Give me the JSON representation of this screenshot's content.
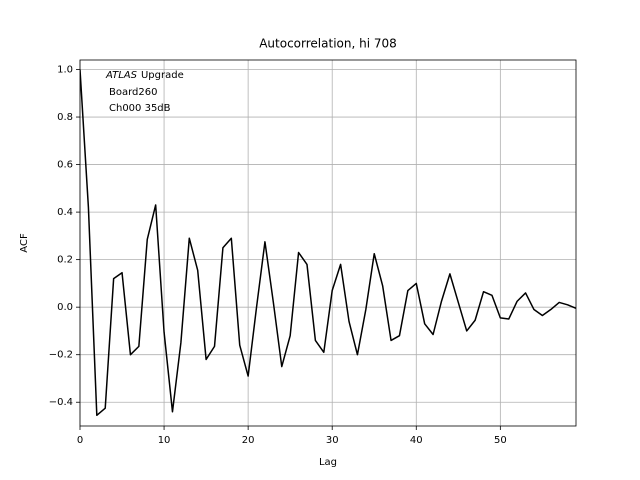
{
  "chart_data": {
    "type": "line",
    "title": "Autocorrelation, hi 708",
    "x_label": "Lag",
    "y_label": "ACF",
    "annotation": {
      "emphasis": "ATLAS",
      "lines": [
        "Upgrade",
        "Board260",
        "Ch000 35dB"
      ]
    },
    "x": [
      0,
      1,
      2,
      3,
      4,
      5,
      6,
      7,
      8,
      9,
      10,
      11,
      12,
      13,
      14,
      15,
      16,
      17,
      18,
      19,
      20,
      21,
      22,
      23,
      24,
      25,
      26,
      27,
      28,
      29,
      30,
      31,
      32,
      33,
      34,
      35,
      36,
      37,
      38,
      39,
      40,
      41,
      42,
      43,
      44,
      45,
      46,
      47,
      48,
      49,
      50,
      51,
      52,
      53,
      54,
      55,
      56,
      57,
      58,
      59
    ],
    "series": [
      {
        "color": "#000000",
        "values": [
          1.0,
          0.42,
          -0.455,
          -0.425,
          0.12,
          0.145,
          -0.2,
          -0.165,
          0.285,
          0.43,
          -0.105,
          -0.44,
          -0.15,
          0.29,
          0.155,
          -0.22,
          -0.165,
          0.25,
          0.29,
          -0.16,
          -0.29,
          0.0,
          0.275,
          0.02,
          -0.25,
          -0.12,
          0.23,
          0.18,
          -0.14,
          -0.19,
          0.07,
          0.18,
          -0.06,
          -0.2,
          -0.01,
          0.225,
          0.09,
          -0.14,
          -0.12,
          0.07,
          0.1,
          -0.07,
          -0.115,
          0.025,
          0.14,
          0.02,
          -0.1,
          -0.055,
          0.065,
          0.05,
          -0.045,
          -0.05,
          0.025,
          0.06,
          -0.01,
          -0.035,
          -0.01,
          0.02,
          0.01,
          -0.005
        ]
      }
    ],
    "xlim": [
      0,
      59
    ],
    "ylim": [
      -0.5,
      1.04
    ],
    "xticks": [
      0,
      10,
      20,
      30,
      40,
      50
    ],
    "yticks": [
      {
        "value": -0.4,
        "label": "−0.4"
      },
      {
        "value": -0.2,
        "label": "−0.2"
      },
      {
        "value": 0,
        "label": "0.0"
      },
      {
        "value": 0.2,
        "label": "0.2"
      },
      {
        "value": 0.4,
        "label": "0.4"
      },
      {
        "value": 0.6,
        "label": "0.6"
      },
      {
        "value": 0.8,
        "label": "0.8"
      },
      {
        "value": 1.0,
        "label": "1.0"
      }
    ],
    "grid": true
  }
}
